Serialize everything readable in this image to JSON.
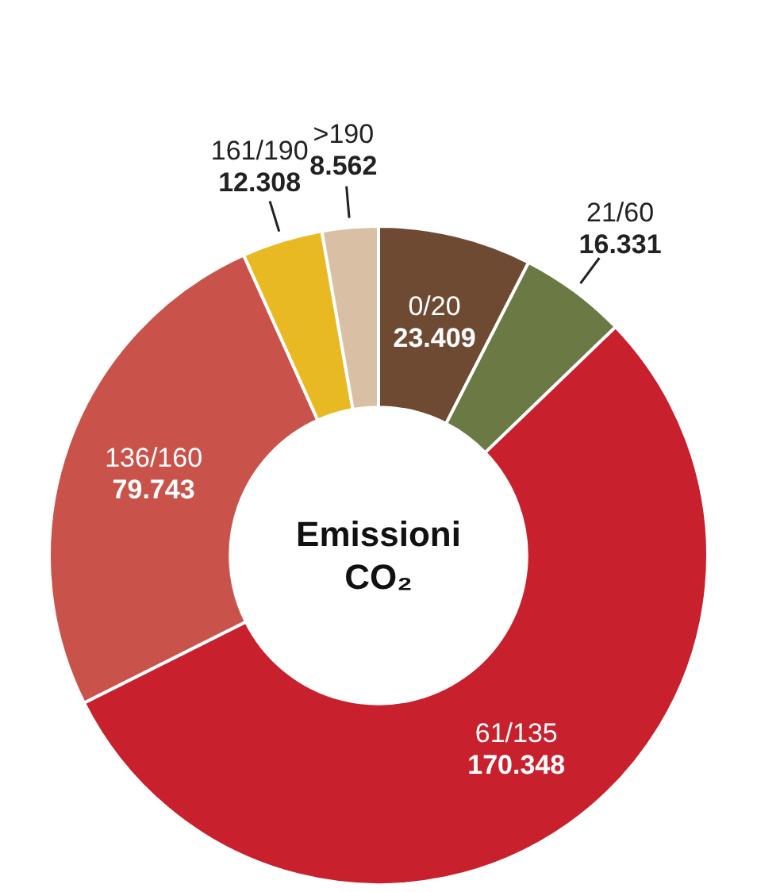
{
  "chart_data": {
    "type": "donut",
    "title": "Emissioni CO₂",
    "categories": [
      "0/20",
      "21/60",
      "61/135",
      "136/160",
      "161/190",
      ">190"
    ],
    "values": [
      23409,
      16331,
      170348,
      79743,
      12308,
      8562
    ],
    "value_labels": [
      "23.409",
      "16.331",
      "170.348",
      "79.743",
      "12.308",
      "8.562"
    ],
    "colors": [
      "#6e4a33",
      "#6b7a45",
      "#c8202d",
      "#c9534a",
      "#e8b923",
      "#d9bfa3"
    ],
    "legend": false
  }
}
